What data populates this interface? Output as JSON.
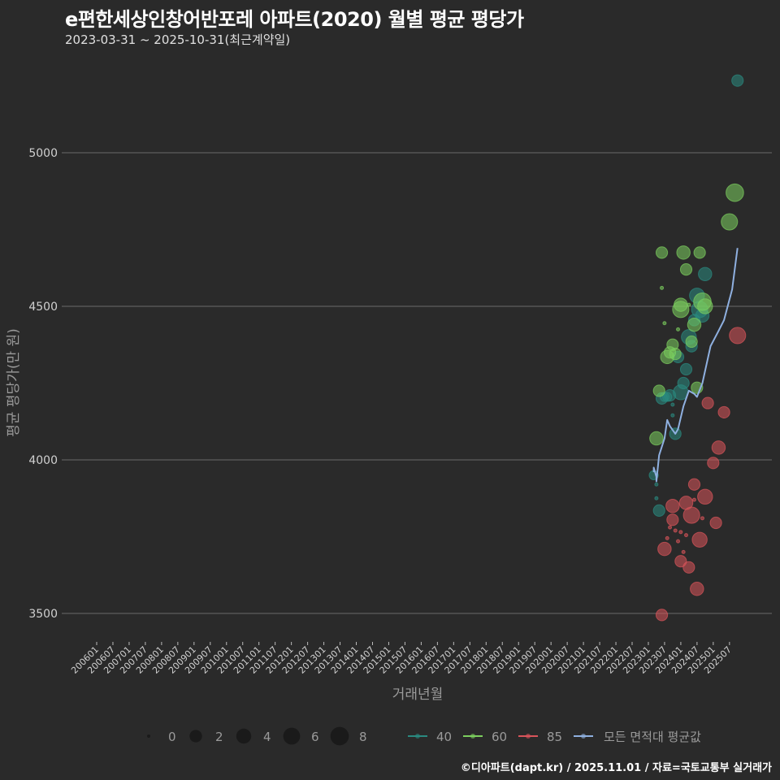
{
  "header": {
    "title": "e편한세상인창어반포레 아파트(2020) 월별 평균 평당가",
    "subtitle": "2023-03-31 ~ 2025-10-31(최근계약일)"
  },
  "footer": {
    "caption": "©디아파트(dapt.kr) / 2025.11.01 / 자료=국토교통부 실거래가"
  },
  "colors": {
    "background": "#2a2a2a",
    "grid": "#6a6a6a",
    "area_40": "#2a8a80",
    "area_60": "#7ccf5e",
    "area_85": "#d9545a",
    "average_line": "#8fb0e0",
    "size_legend": "#1a1a1a"
  },
  "chart_data": {
    "type": "scatter",
    "title": "e편한세상인창어반포레 아파트(2020) 월별 평균 평당가",
    "subtitle": "2023-03-31 ~ 2025-10-31(최근계약일)",
    "xlabel": "거래년월",
    "ylabel": "평균 평당가(만 원)",
    "ylim": [
      3420,
      5280
    ],
    "yticks": [
      3500,
      4000,
      4500,
      5000
    ],
    "grid": true,
    "x_tick_labels": [
      "200601",
      "200607",
      "200701",
      "200707",
      "200801",
      "200807",
      "200901",
      "200907",
      "201001",
      "201007",
      "201101",
      "201107",
      "201201",
      "201207",
      "201301",
      "201307",
      "201401",
      "201407",
      "201501",
      "201507",
      "201601",
      "201607",
      "201701",
      "201707",
      "201801",
      "201807",
      "201901",
      "201907",
      "202001",
      "202007",
      "202101",
      "202107",
      "202201",
      "202207",
      "202301",
      "202307",
      "202401",
      "202407",
      "202501",
      "202507"
    ],
    "size_legend": {
      "title": "",
      "values": [
        0,
        2,
        4,
        6,
        8
      ]
    },
    "color_legend": [
      {
        "label": "40",
        "color": "#2a8a80"
      },
      {
        "label": "60",
        "color": "#7ccf5e"
      },
      {
        "label": "85",
        "color": "#d9545a"
      },
      {
        "label": "모든 면적대 평균값",
        "color": "#8fb0e0"
      }
    ],
    "legend_position": "bottom",
    "series": [
      {
        "name": "40",
        "color": "#2a8a80",
        "points": [
          {
            "x": "2023-03",
            "y": 3950,
            "size": 1
          },
          {
            "x": "2023-04",
            "y": 3920,
            "size": 0
          },
          {
            "x": "2023-04",
            "y": 3875,
            "size": 0
          },
          {
            "x": "2023-05",
            "y": 3835,
            "size": 2
          },
          {
            "x": "2023-06",
            "y": 4200,
            "size": 2
          },
          {
            "x": "2023-07",
            "y": 4205,
            "size": 1
          },
          {
            "x": "2023-08",
            "y": 4205,
            "size": 1
          },
          {
            "x": "2023-09",
            "y": 4210,
            "size": 2
          },
          {
            "x": "2023-10",
            "y": 4180,
            "size": 0
          },
          {
            "x": "2023-10",
            "y": 4145,
            "size": 0
          },
          {
            "x": "2023-11",
            "y": 4085,
            "size": 2
          },
          {
            "x": "2023-12",
            "y": 4335,
            "size": 2
          },
          {
            "x": "2024-01",
            "y": 4220,
            "size": 4
          },
          {
            "x": "2024-02",
            "y": 4250,
            "size": 2
          },
          {
            "x": "2024-03",
            "y": 4295,
            "size": 2
          },
          {
            "x": "2024-04",
            "y": 4400,
            "size": 4
          },
          {
            "x": "2024-05",
            "y": 4370,
            "size": 2
          },
          {
            "x": "2024-06",
            "y": 4455,
            "size": 2
          },
          {
            "x": "2024-07",
            "y": 4535,
            "size": 4
          },
          {
            "x": "2024-08",
            "y": 4490,
            "size": 5
          },
          {
            "x": "2024-09",
            "y": 4470,
            "size": 3
          },
          {
            "x": "2024-10",
            "y": 4605,
            "size": 3
          },
          {
            "x": "2025-10",
            "y": 5235,
            "size": 2
          }
        ]
      },
      {
        "name": "60",
        "color": "#7ccf5e",
        "points": [
          {
            "x": "2023-04",
            "y": 4070,
            "size": 3
          },
          {
            "x": "2023-05",
            "y": 4225,
            "size": 2
          },
          {
            "x": "2023-06",
            "y": 4675,
            "size": 2
          },
          {
            "x": "2023-06",
            "y": 4560,
            "size": 0
          },
          {
            "x": "2023-07",
            "y": 4445,
            "size": 0
          },
          {
            "x": "2023-08",
            "y": 4335,
            "size": 3
          },
          {
            "x": "2023-09",
            "y": 4350,
            "size": 2
          },
          {
            "x": "2023-10",
            "y": 4375,
            "size": 2
          },
          {
            "x": "2023-11",
            "y": 4345,
            "size": 2
          },
          {
            "x": "2023-12",
            "y": 4425,
            "size": 0
          },
          {
            "x": "2024-01",
            "y": 4490,
            "size": 5
          },
          {
            "x": "2024-01",
            "y": 4505,
            "size": 3
          },
          {
            "x": "2024-02",
            "y": 4675,
            "size": 3
          },
          {
            "x": "2024-03",
            "y": 4620,
            "size": 2
          },
          {
            "x": "2024-04",
            "y": 4505,
            "size": 0
          },
          {
            "x": "2024-05",
            "y": 4385,
            "size": 2
          },
          {
            "x": "2024-06",
            "y": 4440,
            "size": 3
          },
          {
            "x": "2024-07",
            "y": 4235,
            "size": 2
          },
          {
            "x": "2024-08",
            "y": 4675,
            "size": 2
          },
          {
            "x": "2024-09",
            "y": 4515,
            "size": 6
          },
          {
            "x": "2024-10",
            "y": 4500,
            "size": 4
          },
          {
            "x": "2025-07",
            "y": 4775,
            "size": 5
          },
          {
            "x": "2025-09",
            "y": 4870,
            "size": 6
          }
        ]
      },
      {
        "name": "85",
        "color": "#d9545a",
        "points": [
          {
            "x": "2023-06",
            "y": 3495,
            "size": 2
          },
          {
            "x": "2023-07",
            "y": 3710,
            "size": 3
          },
          {
            "x": "2023-08",
            "y": 3745,
            "size": 0
          },
          {
            "x": "2023-09",
            "y": 3780,
            "size": 0
          },
          {
            "x": "2023-10",
            "y": 3805,
            "size": 2
          },
          {
            "x": "2023-10",
            "y": 3850,
            "size": 3
          },
          {
            "x": "2023-11",
            "y": 3770,
            "size": 0
          },
          {
            "x": "2023-12",
            "y": 3735,
            "size": 0
          },
          {
            "x": "2024-01",
            "y": 3670,
            "size": 2
          },
          {
            "x": "2024-01",
            "y": 3765,
            "size": 0
          },
          {
            "x": "2024-02",
            "y": 3700,
            "size": 0
          },
          {
            "x": "2024-03",
            "y": 3860,
            "size": 3
          },
          {
            "x": "2024-03",
            "y": 3755,
            "size": 0
          },
          {
            "x": "2024-04",
            "y": 3650,
            "size": 2
          },
          {
            "x": "2024-05",
            "y": 3820,
            "size": 5
          },
          {
            "x": "2024-06",
            "y": 3870,
            "size": 0
          },
          {
            "x": "2024-06",
            "y": 3920,
            "size": 2
          },
          {
            "x": "2024-07",
            "y": 3580,
            "size": 3
          },
          {
            "x": "2024-08",
            "y": 3740,
            "size": 4
          },
          {
            "x": "2024-09",
            "y": 3810,
            "size": 0
          },
          {
            "x": "2024-10",
            "y": 3880,
            "size": 4
          },
          {
            "x": "2024-11",
            "y": 4185,
            "size": 2
          },
          {
            "x": "2025-01",
            "y": 3990,
            "size": 2
          },
          {
            "x": "2025-02",
            "y": 3795,
            "size": 2
          },
          {
            "x": "2025-03",
            "y": 4040,
            "size": 3
          },
          {
            "x": "2025-05",
            "y": 4155,
            "size": 2
          },
          {
            "x": "2025-10",
            "y": 4405,
            "size": 5
          }
        ]
      },
      {
        "name": "모든 면적대 평균값",
        "type": "line",
        "color": "#8fb0e0",
        "points": [
          {
            "x": "2023-03",
            "y": 3960
          },
          {
            "x": "2023-03",
            "y": 3975
          },
          {
            "x": "2023-04",
            "y": 3945
          },
          {
            "x": "2023-04",
            "y": 3930
          },
          {
            "x": "2023-05",
            "y": 4015
          },
          {
            "x": "2023-07",
            "y": 4070
          },
          {
            "x": "2023-08",
            "y": 4130
          },
          {
            "x": "2023-09",
            "y": 4110
          },
          {
            "x": "2023-11",
            "y": 4085
          },
          {
            "x": "2023-12",
            "y": 4100
          },
          {
            "x": "2024-02",
            "y": 4175
          },
          {
            "x": "2024-04",
            "y": 4225
          },
          {
            "x": "2024-06",
            "y": 4215
          },
          {
            "x": "2024-07",
            "y": 4205
          },
          {
            "x": "2024-09",
            "y": 4250
          },
          {
            "x": "2024-12",
            "y": 4370
          },
          {
            "x": "2025-03",
            "y": 4420
          },
          {
            "x": "2025-05",
            "y": 4455
          },
          {
            "x": "2025-08",
            "y": 4555
          },
          {
            "x": "2025-10",
            "y": 4690
          }
        ]
      }
    ]
  }
}
